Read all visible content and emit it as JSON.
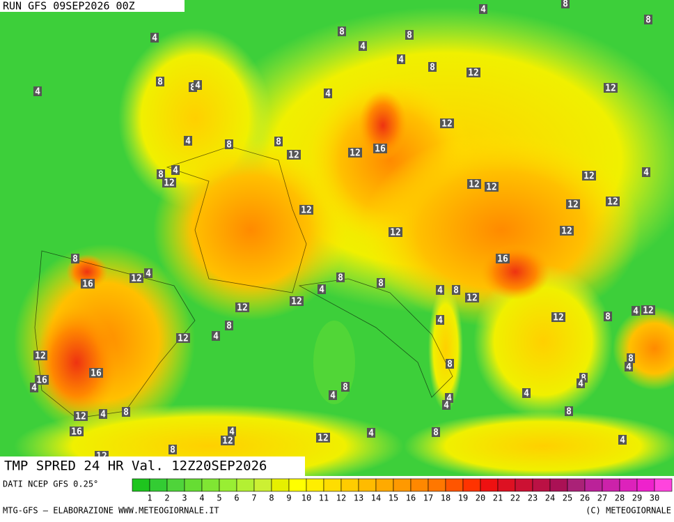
{
  "header": {
    "run": "RUN GFS 09SEP2026 00Z"
  },
  "map": {
    "title": "TMP SPRED 24 HR Val. 12Z20SEP2026",
    "labels": [
      4,
      8,
      8,
      4,
      8,
      8,
      4,
      4,
      8,
      12,
      4,
      8,
      8,
      4,
      4,
      12,
      12,
      8,
      4,
      8,
      12,
      12,
      16,
      8,
      4,
      12,
      12,
      4,
      12,
      12,
      12,
      12,
      12,
      12,
      12,
      8,
      16,
      16,
      12,
      4,
      8,
      8,
      4,
      4,
      8,
      12,
      12,
      12,
      4,
      12,
      8,
      12,
      4,
      8,
      4,
      12,
      12,
      8,
      4,
      8,
      16,
      16,
      4,
      8,
      4,
      8,
      4,
      4,
      4,
      4,
      8,
      12,
      4,
      8,
      16,
      4,
      12,
      12,
      4,
      8,
      4,
      8,
      12
    ]
  },
  "footer": {
    "source": "DATI NCEP GFS 0.25°",
    "credit": "MTG-GFS — ELABORAZIONE WWW.METEOGIORNALE.IT",
    "copyright": "(C) METEOGIORNALE"
  },
  "colorbar": {
    "labels": [
      1,
      2,
      3,
      4,
      5,
      6,
      7,
      8,
      9,
      10,
      11,
      12,
      13,
      14,
      15,
      16,
      17,
      18,
      19,
      20,
      21,
      22,
      23,
      24,
      25,
      26,
      27,
      28,
      29,
      30
    ],
    "colors": [
      "#1ec51e",
      "#33cc33",
      "#4fd43a",
      "#66dd33",
      "#80e633",
      "#99ee33",
      "#b3f033",
      "#ccf033",
      "#e6f000",
      "#ffff00",
      "#ffee00",
      "#ffdd00",
      "#ffcc00",
      "#ffbb00",
      "#ffaa00",
      "#ff9900",
      "#ff8800",
      "#ff7700",
      "#ff5500",
      "#ff3300",
      "#ee1111",
      "#dd1122",
      "#cc1133",
      "#bb1144",
      "#aa1155",
      "#aa2277",
      "#bb2299",
      "#cc22aa",
      "#dd22bb",
      "#ee22cc",
      "#ff44dd"
    ]
  }
}
